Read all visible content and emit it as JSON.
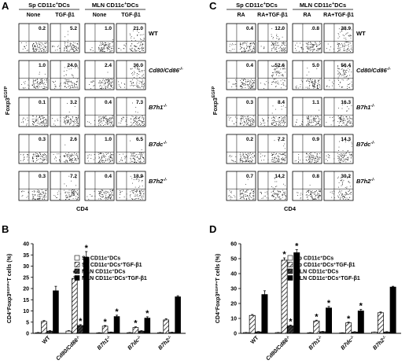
{
  "panels": {
    "A": {
      "letter": "A",
      "groups": [
        {
          "html_label": "Sp CD11c<tspan font-size='5.5' dy='-3'>+</tspan><tspan dy='3'>DCs</tspan>",
          "label": "Sp CD11c+DCs",
          "cols": [
            "None",
            "TGF-β1"
          ]
        },
        {
          "label": "MLN CD11c+DCs",
          "cols": [
            "None",
            "TGF-β1"
          ]
        }
      ],
      "ylabel": "Foxp3EGFP",
      "xlabel": "CD4",
      "rows": [
        {
          "genotype": "WT",
          "values": [
            "0.2",
            "5.2",
            "1.0",
            "21.0"
          ]
        },
        {
          "genotype": "Cd80/Cd86-/-",
          "values": [
            "1.0",
            "24.0",
            "2.4",
            "36.0"
          ]
        },
        {
          "genotype": "B7h1-/-",
          "values": [
            "0.1",
            "3.2",
            "0.4",
            "7.3"
          ]
        },
        {
          "genotype": "B7dc-/-",
          "values": [
            "0.3",
            "2.6",
            "1.0",
            "6.5"
          ]
        },
        {
          "genotype": "B7h2-/-",
          "values": [
            "0.3",
            "7.2",
            "0.4",
            "18.9"
          ]
        }
      ]
    },
    "C": {
      "letter": "C",
      "groups": [
        {
          "label": "Sp CD11c+DCs",
          "cols": [
            "RA",
            "RA+TGF-β1"
          ]
        },
        {
          "label": "MLN CD11c+DCs",
          "cols": [
            "RA",
            "RA+TGF-β1"
          ]
        }
      ],
      "ylabel": "Foxp3EGFP",
      "xlabel": "CD4",
      "rows": [
        {
          "genotype": "WT",
          "values": [
            "0.4",
            "12.0",
            "0.8",
            "28.9"
          ]
        },
        {
          "genotype": "Cd80/Cd86-/-",
          "values": [
            "0.4",
            "52.6",
            "5.0",
            "56.4"
          ]
        },
        {
          "genotype": "B7h1-/-",
          "values": [
            "0.3",
            "8.4",
            "1.1",
            "16.3"
          ]
        },
        {
          "genotype": "B7dc-/-",
          "values": [
            "0.2",
            "7.2",
            "0.9",
            "14.3"
          ]
        },
        {
          "genotype": "B7h2-/-",
          "values": [
            "0.7",
            "14.2",
            "0.8",
            "30.2"
          ]
        }
      ]
    },
    "B": {
      "letter": "B"
    },
    "D": {
      "letter": "D"
    }
  },
  "chart_data": [
    {
      "panel": "B",
      "type": "bar",
      "ylabel": "CD4+Foxp3EGFP+T cells (%)",
      "ylim": [
        0,
        40
      ],
      "yticks": [
        "0",
        "5",
        "10",
        "15",
        "20",
        "25",
        "30",
        "35",
        "40"
      ],
      "categories": [
        "WT",
        "Cd80/Cd86-/-",
        "B7h1-/-",
        "B7dc-/-",
        "B7h2-/-"
      ],
      "series": [
        {
          "name": "Sp CD11c+DCs",
          "values": [
            0.3,
            1.0,
            0.2,
            0.3,
            0.3
          ],
          "errors": [
            0.1,
            0.2,
            0.1,
            0.1,
            0.1
          ]
        },
        {
          "name": "Sp CD11c+DCs+TGF-β1",
          "values": [
            5.3,
            24.5,
            3.2,
            2.6,
            6.0
          ],
          "errors": [
            0.4,
            0.8,
            0.3,
            0.3,
            0.5
          ]
        },
        {
          "name": "MLN CD11c+DCs",
          "values": [
            1.0,
            3.5,
            0.5,
            1.0,
            0.4
          ],
          "errors": [
            0.2,
            0.4,
            0.1,
            0.2,
            0.1
          ]
        },
        {
          "name": "MLN CD11c+DCs+TGF-β1",
          "values": [
            19.0,
            34.0,
            7.5,
            6.8,
            16.3
          ],
          "errors": [
            2.0,
            2.5,
            0.6,
            0.6,
            0.5
          ]
        }
      ],
      "stars": [
        [
          1,
          1
        ],
        [
          1,
          2
        ],
        [
          1,
          3
        ],
        [
          2,
          1
        ],
        [
          2,
          3
        ],
        [
          3,
          1
        ],
        [
          3,
          3
        ]
      ]
    },
    {
      "panel": "D",
      "type": "bar",
      "ylabel": "CD4+Foxp3EGFP+T cells (%)",
      "ylim": [
        0,
        60
      ],
      "yticks": [
        "0",
        "10",
        "20",
        "30",
        "40",
        "50",
        "60"
      ],
      "categories": [
        "WT",
        "Cd80/Cd86-/-",
        "B7h1-/-",
        "B7dc-/-",
        "B7h2-/-"
      ],
      "series": [
        {
          "name": "Sp CD11c+DCs",
          "values": [
            0.5,
            0.5,
            0.4,
            0.3,
            0.8
          ],
          "errors": [
            0.1,
            0.1,
            0.1,
            0.1,
            0.1
          ]
        },
        {
          "name": "Sp CD11c+DCs+TGF-β1",
          "values": [
            12.0,
            49.0,
            8.3,
            7.0,
            13.8
          ],
          "errors": [
            0.6,
            1.5,
            0.5,
            0.5,
            0.5
          ]
        },
        {
          "name": "MLN CD11c+DCs",
          "values": [
            1.0,
            5.0,
            1.1,
            0.9,
            0.9
          ],
          "errors": [
            0.2,
            0.5,
            0.2,
            0.2,
            0.2
          ]
        },
        {
          "name": "MLN CD11c+DCs+TGF-β1",
          "values": [
            26.0,
            54.0,
            17.0,
            15.0,
            31.0
          ],
          "errors": [
            2.5,
            2.0,
            1.0,
            1.0,
            0.5
          ]
        }
      ],
      "stars": [
        [
          1,
          1
        ],
        [
          1,
          2
        ],
        [
          1,
          3
        ],
        [
          2,
          1
        ],
        [
          2,
          3
        ],
        [
          3,
          1
        ],
        [
          3,
          3
        ]
      ]
    }
  ],
  "colors": {
    "ink": "#000000",
    "dot": "#111111",
    "bg": "#ffffff"
  }
}
